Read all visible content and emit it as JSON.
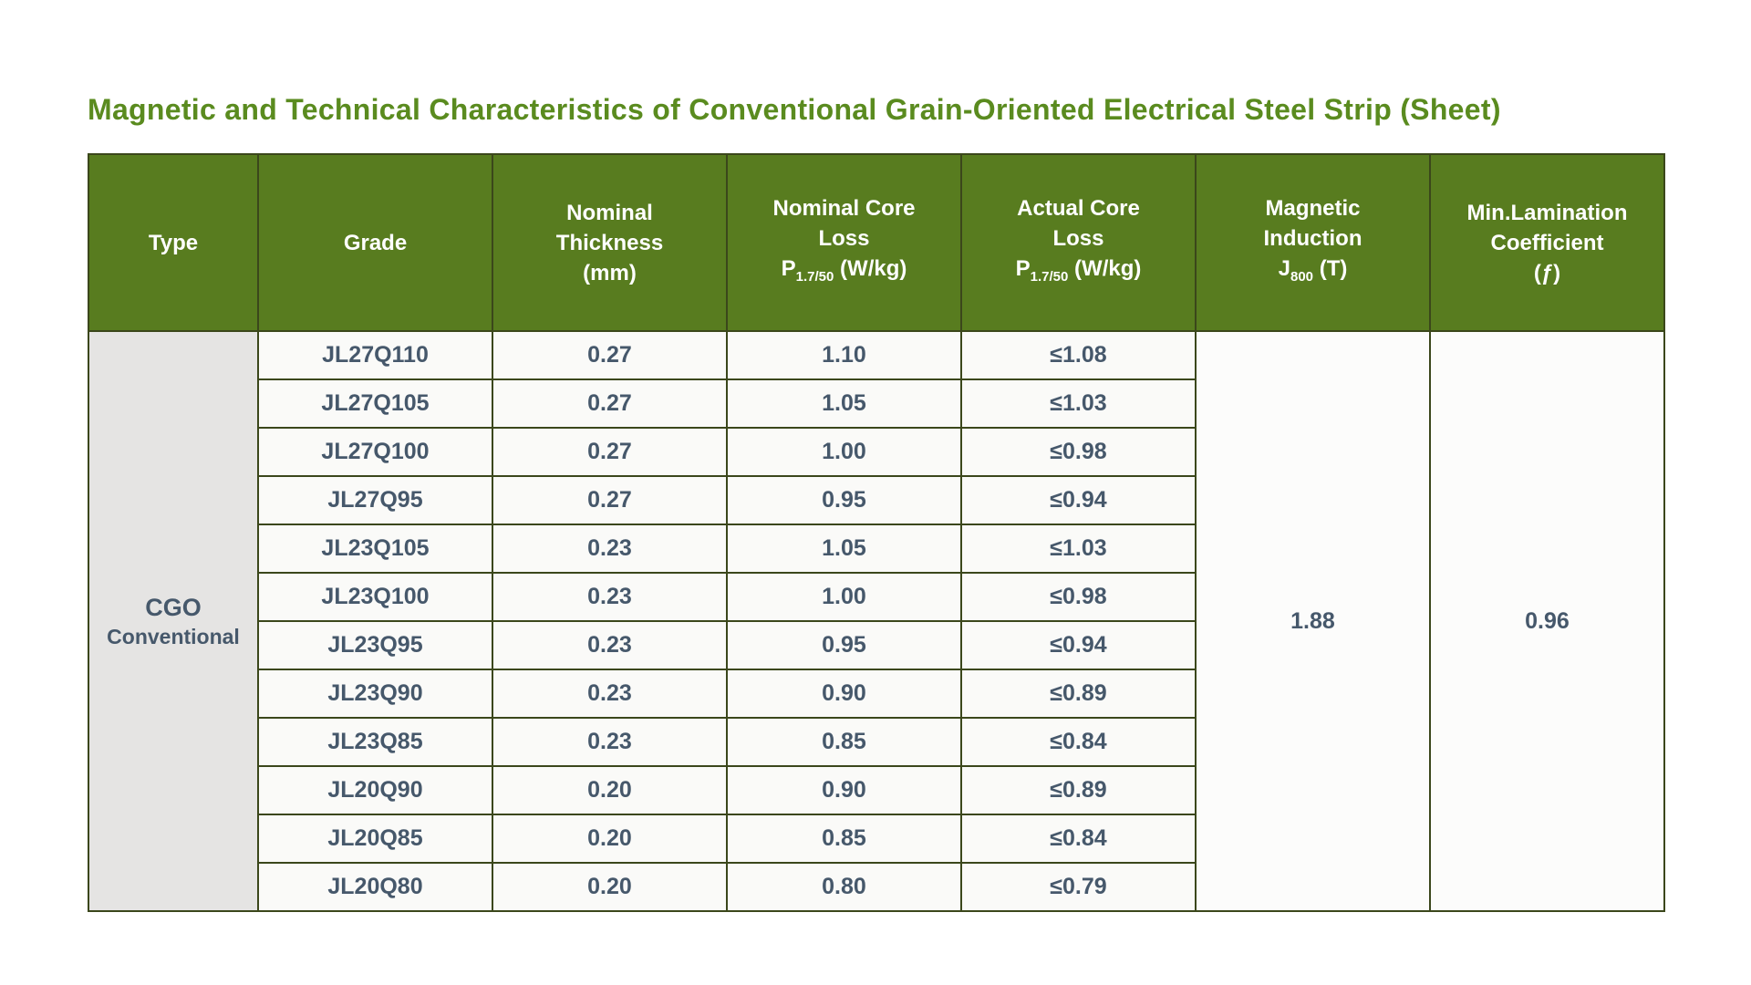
{
  "page_title": "Magnetic and Technical Characteristics of Conventional Grain-Oriented Electrical Steel Strip (Sheet)",
  "colors": {
    "page_bg": "#ffffff",
    "title_green": "#5a8b1f",
    "header_bg": "#587c1f",
    "header_text": "#ffffff",
    "border": "#3b471b",
    "body_text": "#46586b",
    "type_cell_bg": "#e5e4e3",
    "row_cell_bg": "#fafaf8",
    "merged_cell_bg": "#fcfcfb"
  },
  "chart_data": {
    "type": "table",
    "title": "Magnetic and Technical Characteristics of Conventional Grain-Oriented Electrical Steel Strip (Sheet)",
    "columns": [
      {
        "label": "Type"
      },
      {
        "label": "Grade"
      },
      {
        "lines": [
          "Nominal",
          "Thickness",
          "(mm)"
        ]
      },
      {
        "lines": [
          "Nominal Core",
          "Loss"
        ],
        "formula": {
          "base": "P",
          "sub": "1.7/50",
          "rest": " (W/kg)"
        }
      },
      {
        "lines": [
          "Actual Core",
          "Loss"
        ],
        "formula": {
          "base": "P",
          "sub": "1.7/50",
          "rest": " (W/kg)"
        }
      },
      {
        "lines": [
          "Magnetic",
          "Induction"
        ],
        "formula": {
          "base": "J",
          "sub": "800",
          "rest": " (T)"
        }
      },
      {
        "lines": [
          "Min.Lamination",
          "Coefficient",
          "(ƒ)"
        ]
      }
    ],
    "type_group": {
      "line1": "CGO",
      "line2": "Conventional",
      "rowspan": 12
    },
    "rows": [
      {
        "grade": "JL27Q110",
        "nominal_thickness_mm": "0.27",
        "nominal_core_loss": "1.10",
        "actual_core_loss": "≤1.08"
      },
      {
        "grade": "JL27Q105",
        "nominal_thickness_mm": "0.27",
        "nominal_core_loss": "1.05",
        "actual_core_loss": "≤1.03"
      },
      {
        "grade": "JL27Q100",
        "nominal_thickness_mm": "0.27",
        "nominal_core_loss": "1.00",
        "actual_core_loss": "≤0.98"
      },
      {
        "grade": "JL27Q95",
        "nominal_thickness_mm": "0.27",
        "nominal_core_loss": "0.95",
        "actual_core_loss": "≤0.94"
      },
      {
        "grade": "JL23Q105",
        "nominal_thickness_mm": "0.23",
        "nominal_core_loss": "1.05",
        "actual_core_loss": "≤1.03"
      },
      {
        "grade": "JL23Q100",
        "nominal_thickness_mm": "0.23",
        "nominal_core_loss": "1.00",
        "actual_core_loss": "≤0.98"
      },
      {
        "grade": "JL23Q95",
        "nominal_thickness_mm": "0.23",
        "nominal_core_loss": "0.95",
        "actual_core_loss": "≤0.94"
      },
      {
        "grade": "JL23Q90",
        "nominal_thickness_mm": "0.23",
        "nominal_core_loss": "0.90",
        "actual_core_loss": "≤0.89"
      },
      {
        "grade": "JL23Q85",
        "nominal_thickness_mm": "0.23",
        "nominal_core_loss": "0.85",
        "actual_core_loss": "≤0.84"
      },
      {
        "grade": "JL20Q90",
        "nominal_thickness_mm": "0.20",
        "nominal_core_loss": "0.90",
        "actual_core_loss": "≤0.89"
      },
      {
        "grade": "JL20Q85",
        "nominal_thickness_mm": "0.20",
        "nominal_core_loss": "0.85",
        "actual_core_loss": "≤0.84"
      },
      {
        "grade": "JL20Q80",
        "nominal_thickness_mm": "0.20",
        "nominal_core_loss": "0.80",
        "actual_core_loss": "≤0.79"
      }
    ],
    "magnetic_induction_J800_T": "1.88",
    "min_lamination_coefficient": "0.96"
  }
}
